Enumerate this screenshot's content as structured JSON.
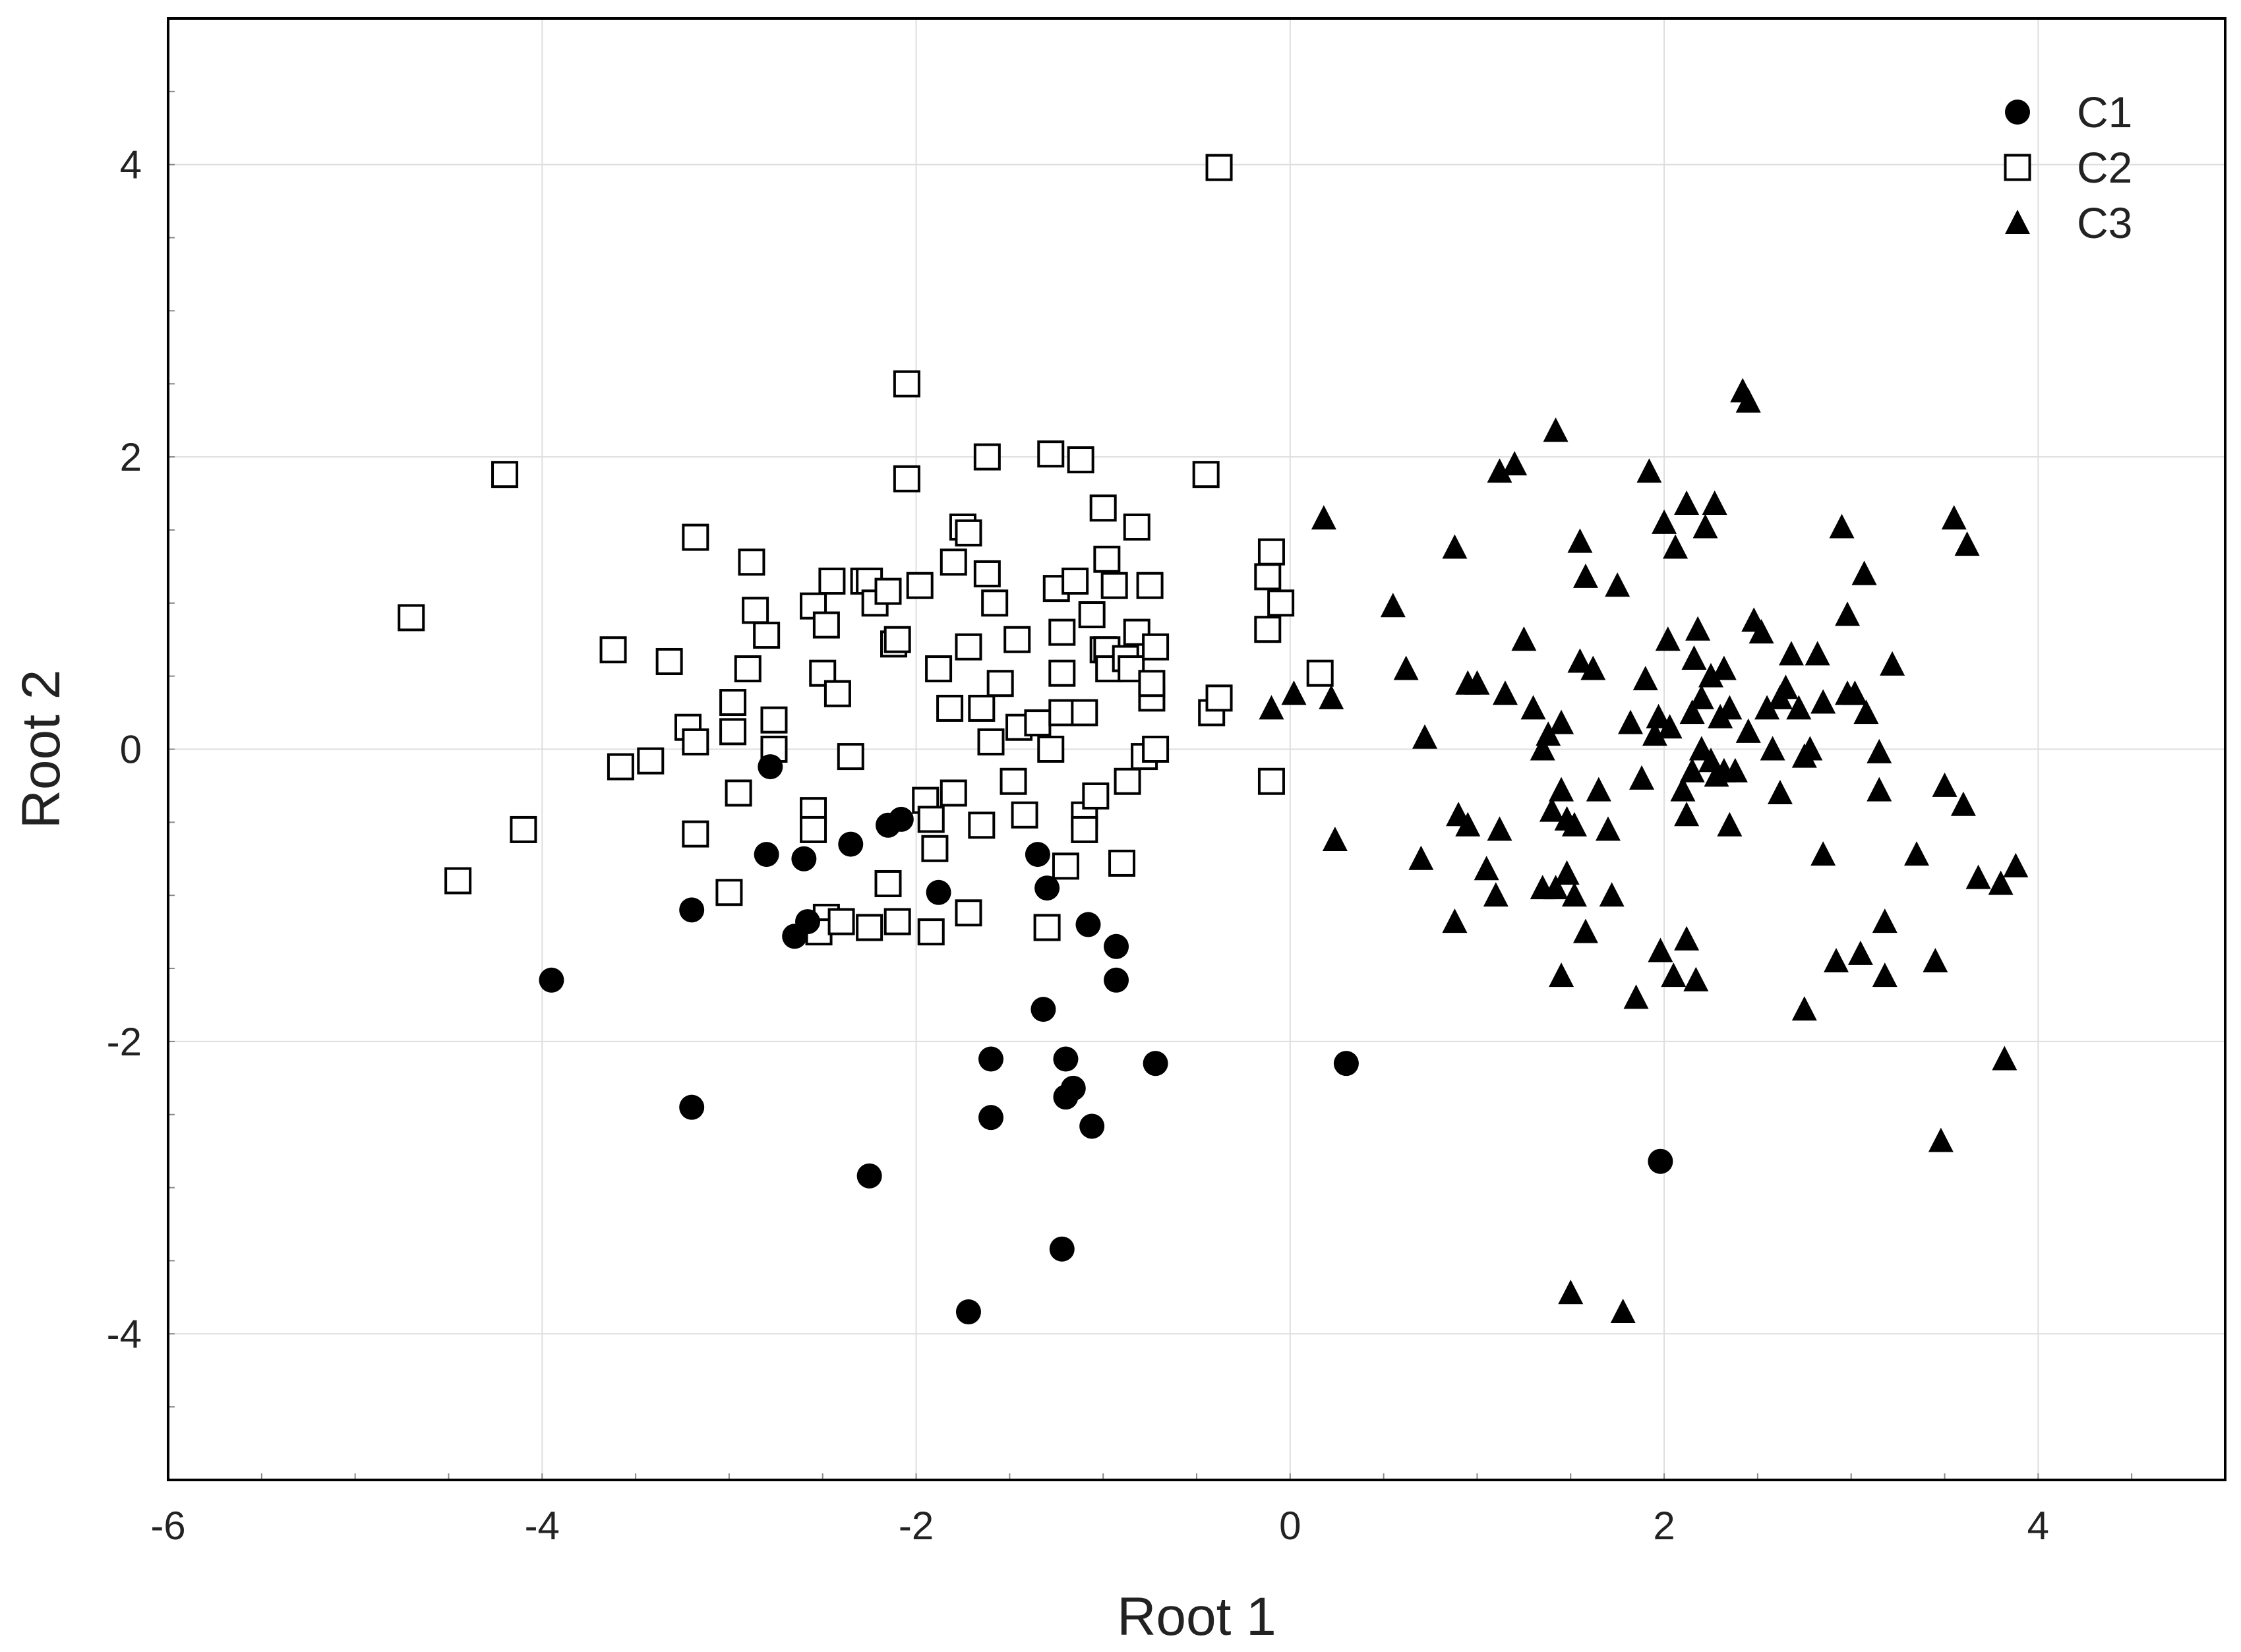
{
  "chart_data": {
    "type": "scatter",
    "title": "",
    "xlabel": "Root 1",
    "ylabel": "Root 2",
    "xlim": [
      -6,
      5
    ],
    "ylim": [
      -5,
      5
    ],
    "xticks": [
      -6,
      -4,
      -2,
      0,
      2,
      4
    ],
    "yticks": [
      -4,
      -2,
      0,
      2,
      4
    ],
    "xtick_labels": [
      "-6",
      "-4",
      "-2",
      "0",
      "2",
      "4"
    ],
    "ytick_labels": [
      "-4",
      "-2",
      "0",
      "2",
      "4"
    ],
    "grid": true,
    "legend_position": "top-right",
    "series": [
      {
        "name": "C1",
        "marker": "filled-circle",
        "color": "#000000",
        "points": [
          [
            -3.95,
            -1.58
          ],
          [
            -3.2,
            -1.1
          ],
          [
            -3.2,
            -2.45
          ],
          [
            -2.8,
            -0.72
          ],
          [
            -2.78,
            -0.12
          ],
          [
            -2.6,
            -0.75
          ],
          [
            -2.58,
            -1.18
          ],
          [
            -2.65,
            -1.28
          ],
          [
            -2.35,
            -0.65
          ],
          [
            -2.25,
            -2.92
          ],
          [
            -2.15,
            -0.52
          ],
          [
            -2.08,
            -0.48
          ],
          [
            -1.88,
            -0.98
          ],
          [
            -1.6,
            -2.12
          ],
          [
            -1.6,
            -2.52
          ],
          [
            -1.72,
            -3.85
          ],
          [
            -1.35,
            -0.72
          ],
          [
            -1.32,
            -1.78
          ],
          [
            -1.3,
            -0.95
          ],
          [
            -1.2,
            -2.12
          ],
          [
            -1.2,
            -2.38
          ],
          [
            -1.16,
            -2.32
          ],
          [
            -1.08,
            -1.2
          ],
          [
            -1.06,
            -2.58
          ],
          [
            -1.22,
            -3.42
          ],
          [
            -0.93,
            -1.35
          ],
          [
            -0.93,
            -1.58
          ],
          [
            -0.72,
            -2.15
          ],
          [
            0.3,
            -2.15
          ],
          [
            1.98,
            -2.82
          ]
        ]
      },
      {
        "name": "C2",
        "marker": "open-square",
        "color": "#000000",
        "points": [
          [
            -4.7,
            0.9
          ],
          [
            -4.2,
            1.88
          ],
          [
            -4.45,
            -0.9
          ],
          [
            -4.1,
            -0.55
          ],
          [
            -3.62,
            0.68
          ],
          [
            -3.58,
            -0.12
          ],
          [
            -3.42,
            -0.08
          ],
          [
            -3.32,
            0.6
          ],
          [
            -3.22,
            0.15
          ],
          [
            -3.18,
            0.05
          ],
          [
            -3.18,
            1.45
          ],
          [
            -3.18,
            -0.58
          ],
          [
            -3.0,
            -0.98
          ],
          [
            -2.98,
            0.32
          ],
          [
            -2.98,
            0.12
          ],
          [
            -2.95,
            -0.3
          ],
          [
            -2.9,
            0.55
          ],
          [
            -2.88,
            1.28
          ],
          [
            -2.86,
            0.95
          ],
          [
            -2.8,
            0.78
          ],
          [
            -2.76,
            0.2
          ],
          [
            -2.76,
            0.0
          ],
          [
            -2.55,
            0.98
          ],
          [
            -2.55,
            -0.42
          ],
          [
            -2.55,
            -0.55
          ],
          [
            -2.5,
            0.52
          ],
          [
            -2.48,
            0.85
          ],
          [
            -2.45,
            1.15
          ],
          [
            -2.42,
            0.38
          ],
          [
            -2.48,
            -1.15
          ],
          [
            -2.52,
            -1.25
          ],
          [
            -2.4,
            -1.18
          ],
          [
            -2.35,
            -0.05
          ],
          [
            -2.28,
            1.15
          ],
          [
            -2.25,
            1.15
          ],
          [
            -2.25,
            -1.22
          ],
          [
            -2.22,
            1.0
          ],
          [
            -2.15,
            1.08
          ],
          [
            -2.15,
            -0.92
          ],
          [
            -2.12,
            0.72
          ],
          [
            -2.1,
            0.75
          ],
          [
            -2.1,
            -1.18
          ],
          [
            -2.05,
            2.5
          ],
          [
            -2.05,
            1.85
          ],
          [
            -1.98,
            1.12
          ],
          [
            -1.95,
            -0.35
          ],
          [
            -1.92,
            -0.48
          ],
          [
            -1.92,
            -1.25
          ],
          [
            -1.9,
            -0.68
          ],
          [
            -1.88,
            0.55
          ],
          [
            -1.82,
            0.28
          ],
          [
            -1.8,
            1.28
          ],
          [
            -1.8,
            -0.3
          ],
          [
            -1.75,
            1.52
          ],
          [
            -1.72,
            1.48
          ],
          [
            -1.72,
            0.7
          ],
          [
            -1.72,
            -1.12
          ],
          [
            -1.65,
            0.28
          ],
          [
            -1.65,
            -0.52
          ],
          [
            -1.62,
            2.0
          ],
          [
            -1.62,
            1.2
          ],
          [
            -1.6,
            0.05
          ],
          [
            -1.58,
            1.0
          ],
          [
            -1.55,
            0.45
          ],
          [
            -1.48,
            -0.22
          ],
          [
            -1.46,
            0.75
          ],
          [
            -1.45,
            0.15
          ],
          [
            -1.42,
            -0.45
          ],
          [
            -1.35,
            0.18
          ],
          [
            -1.3,
            -1.22
          ],
          [
            -1.28,
            2.02
          ],
          [
            -1.28,
            0.0
          ],
          [
            -1.25,
            1.1
          ],
          [
            -1.22,
            0.8
          ],
          [
            -1.22,
            0.52
          ],
          [
            -1.22,
            0.25
          ],
          [
            -1.2,
            -0.8
          ],
          [
            -1.15,
            1.15
          ],
          [
            -1.12,
            1.98
          ],
          [
            -1.1,
            0.25
          ],
          [
            -1.1,
            -0.45
          ],
          [
            -1.1,
            -0.55
          ],
          [
            -1.06,
            0.92
          ],
          [
            -1.04,
            -0.32
          ],
          [
            -1.0,
            1.65
          ],
          [
            -1.0,
            0.68
          ],
          [
            -0.98,
            1.3
          ],
          [
            -0.98,
            0.68
          ],
          [
            -0.97,
            0.55
          ],
          [
            -0.94,
            1.12
          ],
          [
            -0.9,
            -0.78
          ],
          [
            -0.88,
            0.62
          ],
          [
            -0.87,
            -0.22
          ],
          [
            -0.85,
            0.55
          ],
          [
            -0.82,
            1.52
          ],
          [
            -0.82,
            0.8
          ],
          [
            -0.78,
            -0.05
          ],
          [
            -0.75,
            1.12
          ],
          [
            -0.74,
            0.35
          ],
          [
            -0.74,
            0.45
          ],
          [
            -0.72,
            0.7
          ],
          [
            -0.72,
            0.0
          ],
          [
            -0.45,
            1.88
          ],
          [
            -0.42,
            0.25
          ],
          [
            -0.38,
            0.35
          ],
          [
            -0.38,
            3.98
          ],
          [
            -0.12,
            0.82
          ],
          [
            -0.12,
            1.18
          ],
          [
            -0.1,
            1.35
          ],
          [
            -0.1,
            -0.22
          ],
          [
            -0.05,
            1.0
          ],
          [
            0.16,
            0.52
          ]
        ]
      },
      {
        "name": "C3",
        "marker": "filled-triangle",
        "color": "#000000",
        "points": [
          [
            -0.1,
            0.28
          ],
          [
            0.02,
            0.38
          ],
          [
            0.18,
            1.58
          ],
          [
            0.22,
            0.35
          ],
          [
            0.24,
            -0.62
          ],
          [
            0.55,
            0.98
          ],
          [
            0.62,
            0.55
          ],
          [
            0.7,
            -0.75
          ],
          [
            0.72,
            0.08
          ],
          [
            0.88,
            1.38
          ],
          [
            0.88,
            -1.18
          ],
          [
            0.9,
            -0.45
          ],
          [
            0.95,
            -0.52
          ],
          [
            0.95,
            0.45
          ],
          [
            1.0,
            0.45
          ],
          [
            1.05,
            -0.82
          ],
          [
            1.1,
            -1.0
          ],
          [
            1.12,
            -0.55
          ],
          [
            1.12,
            1.9
          ],
          [
            1.15,
            0.38
          ],
          [
            1.2,
            1.95
          ],
          [
            1.25,
            0.75
          ],
          [
            1.3,
            0.28
          ],
          [
            1.35,
            -0.95
          ],
          [
            1.35,
            0.0
          ],
          [
            1.38,
            0.1
          ],
          [
            1.4,
            -0.42
          ],
          [
            1.42,
            2.18
          ],
          [
            1.42,
            -0.95
          ],
          [
            1.45,
            0.18
          ],
          [
            1.45,
            -0.28
          ],
          [
            1.45,
            -1.55
          ],
          [
            1.48,
            -0.48
          ],
          [
            1.48,
            -0.85
          ],
          [
            1.5,
            -3.72
          ],
          [
            1.52,
            -0.52
          ],
          [
            1.52,
            -1.0
          ],
          [
            1.55,
            1.42
          ],
          [
            1.55,
            0.6
          ],
          [
            1.58,
            1.18
          ],
          [
            1.58,
            -1.25
          ],
          [
            1.62,
            0.55
          ],
          [
            1.65,
            -0.28
          ],
          [
            1.7,
            -0.55
          ],
          [
            1.72,
            -1.0
          ],
          [
            1.75,
            1.12
          ],
          [
            1.78,
            -3.85
          ],
          [
            1.82,
            0.18
          ],
          [
            1.85,
            -1.7
          ],
          [
            1.88,
            -0.2
          ],
          [
            1.9,
            0.48
          ],
          [
            1.92,
            1.9
          ],
          [
            1.95,
            0.1
          ],
          [
            1.97,
            0.22
          ],
          [
            1.98,
            -1.38
          ],
          [
            2.0,
            1.55
          ],
          [
            2.02,
            0.75
          ],
          [
            2.03,
            0.15
          ],
          [
            2.05,
            -1.55
          ],
          [
            2.06,
            1.38
          ],
          [
            2.1,
            -0.28
          ],
          [
            2.12,
            -0.45
          ],
          [
            2.12,
            1.68
          ],
          [
            2.12,
            -1.3
          ],
          [
            2.15,
            0.25
          ],
          [
            2.15,
            -0.15
          ],
          [
            2.16,
            0.62
          ],
          [
            2.17,
            -1.58
          ],
          [
            2.18,
            0.82
          ],
          [
            2.2,
            0.35
          ],
          [
            2.2,
            0.0
          ],
          [
            2.22,
            1.52
          ],
          [
            2.25,
            -0.08
          ],
          [
            2.25,
            0.5
          ],
          [
            2.27,
            1.68
          ],
          [
            2.28,
            -0.18
          ],
          [
            2.3,
            0.22
          ],
          [
            2.32,
            -0.15
          ],
          [
            2.32,
            0.55
          ],
          [
            2.35,
            0.28
          ],
          [
            2.35,
            -0.52
          ],
          [
            2.38,
            -0.15
          ],
          [
            2.42,
            2.45
          ],
          [
            2.45,
            0.12
          ],
          [
            2.45,
            2.38
          ],
          [
            2.48,
            0.88
          ],
          [
            2.52,
            0.8
          ],
          [
            2.55,
            0.28
          ],
          [
            2.58,
            0.0
          ],
          [
            2.62,
            0.35
          ],
          [
            2.62,
            -0.3
          ],
          [
            2.65,
            0.42
          ],
          [
            2.68,
            0.65
          ],
          [
            2.72,
            0.28
          ],
          [
            2.75,
            -0.05
          ],
          [
            2.75,
            -1.78
          ],
          [
            2.78,
            0.0
          ],
          [
            2.82,
            0.65
          ],
          [
            2.85,
            0.32
          ],
          [
            2.85,
            -0.72
          ],
          [
            2.92,
            -1.45
          ],
          [
            2.95,
            1.52
          ],
          [
            2.98,
            0.38
          ],
          [
            2.98,
            0.92
          ],
          [
            3.02,
            0.38
          ],
          [
            3.05,
            -1.4
          ],
          [
            3.07,
            1.2
          ],
          [
            3.08,
            0.25
          ],
          [
            3.15,
            -0.28
          ],
          [
            3.15,
            -0.02
          ],
          [
            3.18,
            -1.55
          ],
          [
            3.18,
            -1.18
          ],
          [
            3.22,
            0.58
          ],
          [
            3.35,
            -0.72
          ],
          [
            3.45,
            -1.45
          ],
          [
            3.48,
            -2.68
          ],
          [
            3.5,
            -0.25
          ],
          [
            3.55,
            1.58
          ],
          [
            3.6,
            -0.38
          ],
          [
            3.62,
            1.4
          ],
          [
            3.68,
            -0.88
          ],
          [
            3.8,
            -0.92
          ],
          [
            3.82,
            -2.12
          ],
          [
            3.88,
            -0.8
          ]
        ]
      }
    ]
  }
}
